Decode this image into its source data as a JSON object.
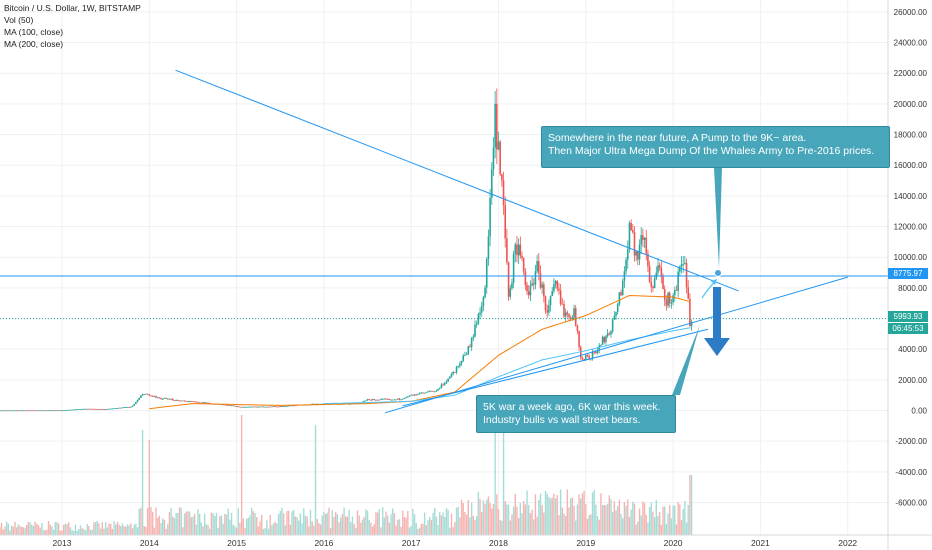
{
  "legend": {
    "title": "Bitcoin / U.S. Dollar, 1W, BITSTAMP",
    "vol": "Vol (50)",
    "ma100": "MA (100, close)",
    "ma200": "MA (200, close)"
  },
  "callouts": {
    "top_line1": "Somewhere in the near future, A Pump to the 9K~ area.",
    "top_line2": "Then Major Ultra Mega Dump Of the Whales Army to Pre-2016 prices.",
    "bottom_line1": "5K war a week ago, 6K war this week.",
    "bottom_line2": "Industry bulls vs wall street bears."
  },
  "price_tags": {
    "level_high": "8775.97",
    "level_current": "5993.93",
    "countdown": "06:45:53"
  },
  "colors": {
    "up": "#26a69a",
    "down": "#ef5350",
    "ma100": "#f57c00",
    "ma200": "#4fc3f7",
    "trendline": "#2196f3",
    "callout": "#48a6bb",
    "arrow": "#2b7bc6"
  },
  "chart_data": {
    "type": "candlestick",
    "title": "Bitcoin / U.S. Dollar, 1W, BITSTAMP",
    "x_tick_labels": [
      "2013",
      "2014",
      "2015",
      "2016",
      "2017",
      "2018",
      "2019",
      "2020",
      "2021",
      "2022"
    ],
    "y_tick_labels": [
      "26000.00",
      "24000.00",
      "22000.00",
      "20000.00",
      "18000.00",
      "16000.00",
      "14000.00",
      "12000.00",
      "10000.00",
      "8000.00",
      "6000.00",
      "4000.00",
      "2000.00",
      "0.00",
      "-2000.00",
      "-4000.00",
      "-6000.00"
    ],
    "ylim": [
      -8200,
      26800
    ],
    "xlim": [
      2012.0,
      2023.0
    ],
    "grid": true,
    "price_anchors": [
      {
        "x": 2012.0,
        "y": 5
      },
      {
        "x": 2013.0,
        "y": 13
      },
      {
        "x": 2013.25,
        "y": 110
      },
      {
        "x": 2013.5,
        "y": 90
      },
      {
        "x": 2013.8,
        "y": 250
      },
      {
        "x": 2013.93,
        "y": 1100
      },
      {
        "x": 2014.1,
        "y": 800
      },
      {
        "x": 2014.45,
        "y": 600
      },
      {
        "x": 2014.9,
        "y": 350
      },
      {
        "x": 2015.05,
        "y": 230
      },
      {
        "x": 2015.5,
        "y": 270
      },
      {
        "x": 2015.9,
        "y": 430
      },
      {
        "x": 2016.4,
        "y": 450
      },
      {
        "x": 2016.5,
        "y": 700
      },
      {
        "x": 2016.9,
        "y": 750
      },
      {
        "x": 2017.0,
        "y": 1000
      },
      {
        "x": 2017.3,
        "y": 1300
      },
      {
        "x": 2017.5,
        "y": 2600
      },
      {
        "x": 2017.68,
        "y": 4300
      },
      {
        "x": 2017.85,
        "y": 8000
      },
      {
        "x": 2017.96,
        "y": 19000
      },
      {
        "x": 2018.05,
        "y": 13500
      },
      {
        "x": 2018.12,
        "y": 7000
      },
      {
        "x": 2018.2,
        "y": 11000
      },
      {
        "x": 2018.35,
        "y": 7500
      },
      {
        "x": 2018.45,
        "y": 9500
      },
      {
        "x": 2018.55,
        "y": 6300
      },
      {
        "x": 2018.65,
        "y": 8200
      },
      {
        "x": 2018.75,
        "y": 6500
      },
      {
        "x": 2018.87,
        "y": 6300
      },
      {
        "x": 2018.95,
        "y": 3300
      },
      {
        "x": 2019.1,
        "y": 3700
      },
      {
        "x": 2019.3,
        "y": 5500
      },
      {
        "x": 2019.45,
        "y": 9000
      },
      {
        "x": 2019.5,
        "y": 12500
      },
      {
        "x": 2019.58,
        "y": 10000
      },
      {
        "x": 2019.66,
        "y": 11500
      },
      {
        "x": 2019.75,
        "y": 8000
      },
      {
        "x": 2019.83,
        "y": 9300
      },
      {
        "x": 2019.9,
        "y": 7300
      },
      {
        "x": 2020.0,
        "y": 7200
      },
      {
        "x": 2020.1,
        "y": 9800
      },
      {
        "x": 2020.15,
        "y": 8800
      },
      {
        "x": 2020.2,
        "y": 5000
      },
      {
        "x": 2020.22,
        "y": 5990
      }
    ],
    "ma100_anchors": [
      {
        "x": 2014.0,
        "y": 120
      },
      {
        "x": 2014.5,
        "y": 450
      },
      {
        "x": 2015.5,
        "y": 330
      },
      {
        "x": 2016.5,
        "y": 450
      },
      {
        "x": 2017.0,
        "y": 600
      },
      {
        "x": 2017.5,
        "y": 1200
      },
      {
        "x": 2018.0,
        "y": 3600
      },
      {
        "x": 2018.5,
        "y": 5300
      },
      {
        "x": 2019.0,
        "y": 6200
      },
      {
        "x": 2019.5,
        "y": 7500
      },
      {
        "x": 2020.0,
        "y": 7400
      },
      {
        "x": 2020.2,
        "y": 7100
      }
    ],
    "ma200_anchors": [
      {
        "x": 2016.0,
        "y": 450
      },
      {
        "x": 2016.5,
        "y": 520
      },
      {
        "x": 2017.0,
        "y": 600
      },
      {
        "x": 2017.5,
        "y": 1000
      },
      {
        "x": 2018.0,
        "y": 2200
      },
      {
        "x": 2018.5,
        "y": 3300
      },
      {
        "x": 2019.0,
        "y": 3900
      },
      {
        "x": 2019.5,
        "y": 4600
      },
      {
        "x": 2020.0,
        "y": 5200
      },
      {
        "x": 2020.2,
        "y": 5400
      }
    ],
    "trendlines": [
      {
        "x1": 2016.7,
        "y1": -150,
        "x2": 2022.0,
        "y2": 8700
      },
      {
        "x1": 2016.9,
        "y1": 300,
        "x2": 2020.4,
        "y2": 5300
      },
      {
        "x1": 2014.3,
        "y1": 22200,
        "x2": 2020.75,
        "y2": 7800
      }
    ],
    "horizontal_levels": [
      8775.97,
      5993.93
    ],
    "annotations": [
      "Somewhere in the near future, A Pump to the 9K~ area.",
      "Then Major Ultra Mega Dump Of the Whales Army to Pre-2016 prices.",
      "5K war a week ago, 6K war this week.",
      "Industry bulls vs wall street bears."
    ]
  }
}
